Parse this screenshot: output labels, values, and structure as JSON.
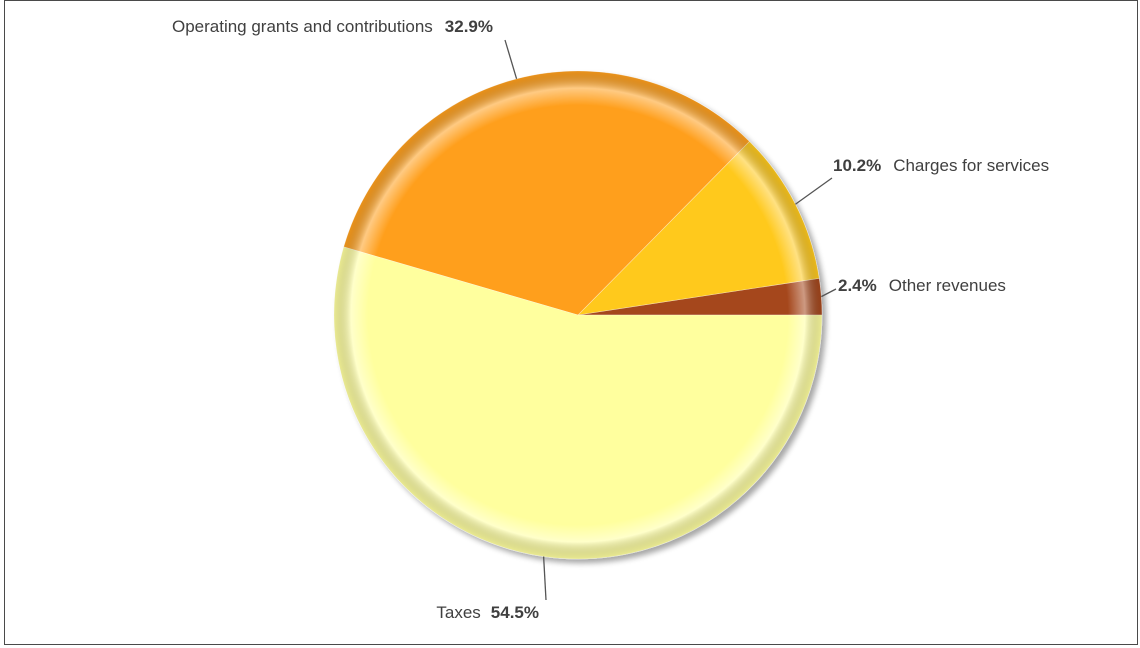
{
  "chart_data": {
    "type": "pie",
    "title": "",
    "slices": [
      {
        "label": "Other revenues",
        "value": 2.4,
        "value_label": "2.4%",
        "color": "#a5461a"
      },
      {
        "label": "Charges for services",
        "value": 10.2,
        "value_label": "10.2%",
        "color": "#ffc91c"
      },
      {
        "label": "Operating grants and contributions",
        "value": 32.9,
        "value_label": "32.9%",
        "color": "#ff9f1c"
      },
      {
        "label": "Taxes",
        "value": 54.5,
        "value_label": "54.5%",
        "color": "#ffff9e"
      }
    ],
    "legend": "none",
    "labels": "outside-with-leader-lines"
  }
}
